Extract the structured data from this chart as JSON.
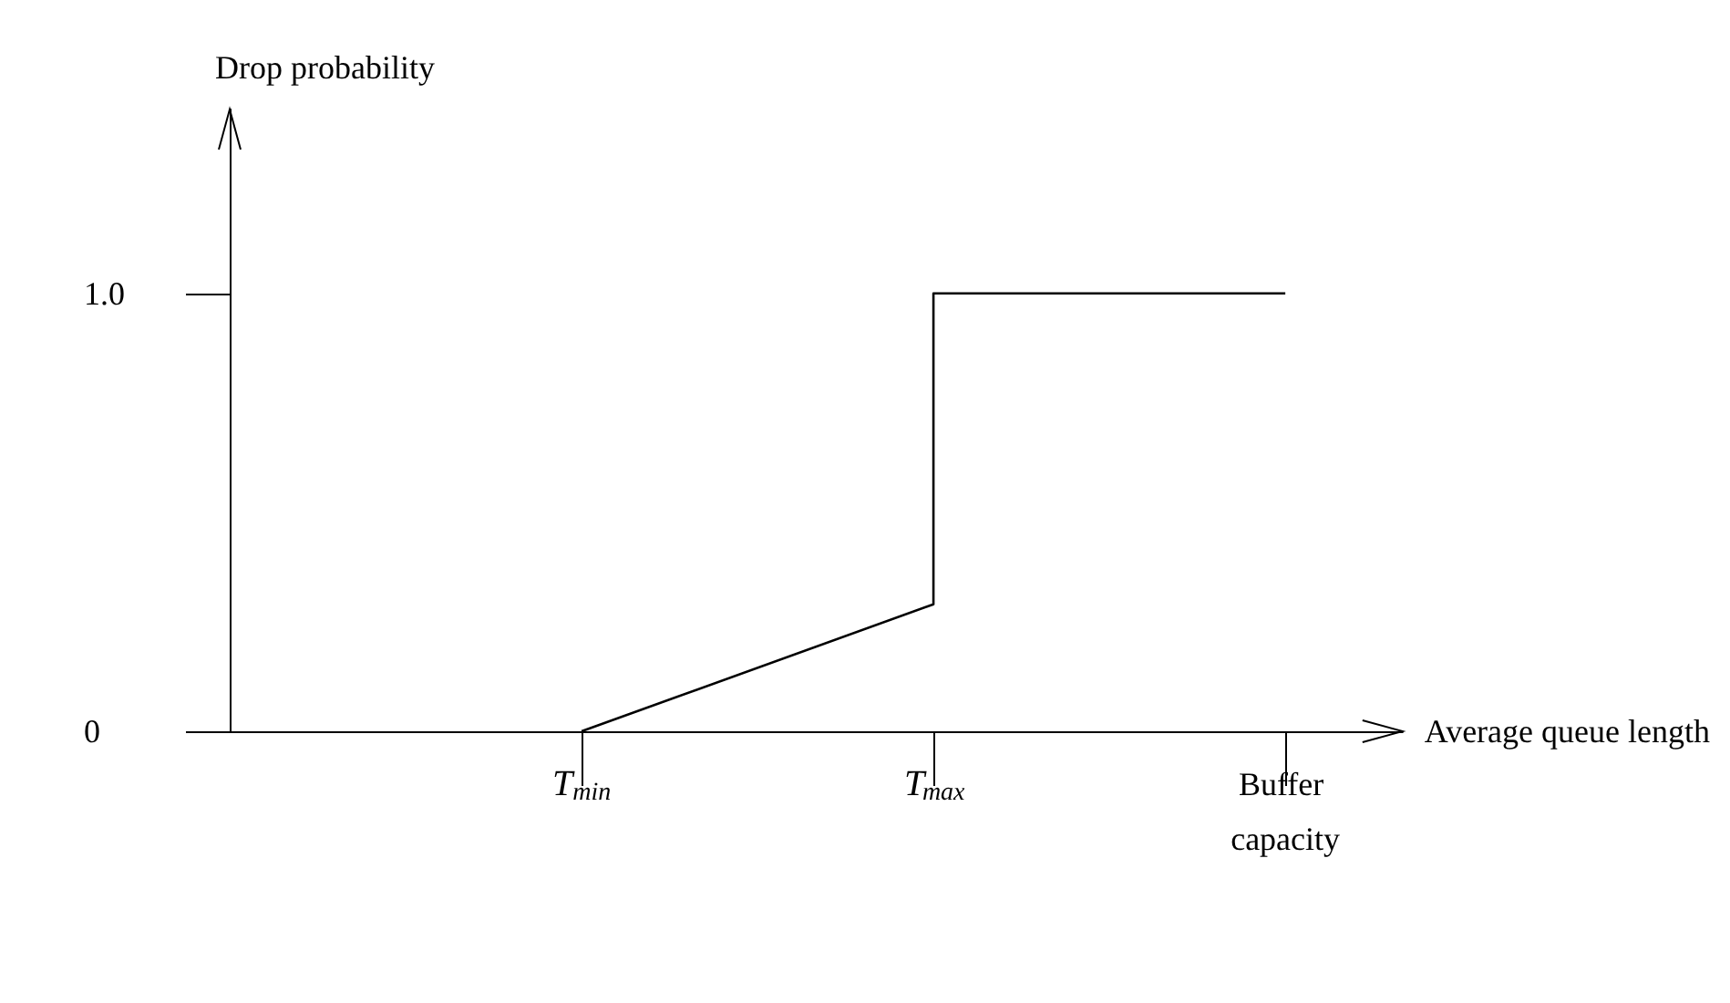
{
  "chart_data": {
    "type": "line",
    "xlabel": "Average queue length",
    "ylabel": "Drop probability",
    "categories": [
      null,
      null,
      null,
      "T$_{min}$",
      null,
      null,
      "T$_{max}$",
      null,
      null,
      "Buffer capacity",
      null
    ],
    "ylim": [
      0,
      1.42
    ],
    "yticks": [
      {
        "value": 0,
        "label": "0"
      },
      {
        "value": 1,
        "label": "1.0"
      }
    ],
    "series": [
      {
        "color": "#000000",
        "x": [
          "T$_{min}$",
          "T$_{max}$",
          "T$_{max}$",
          "Buffer capacity"
        ],
        "values": [
          0,
          0.29,
          1,
          1
        ]
      }
    ],
    "marker": "none",
    "line_style": "solid",
    "grid": false
  }
}
